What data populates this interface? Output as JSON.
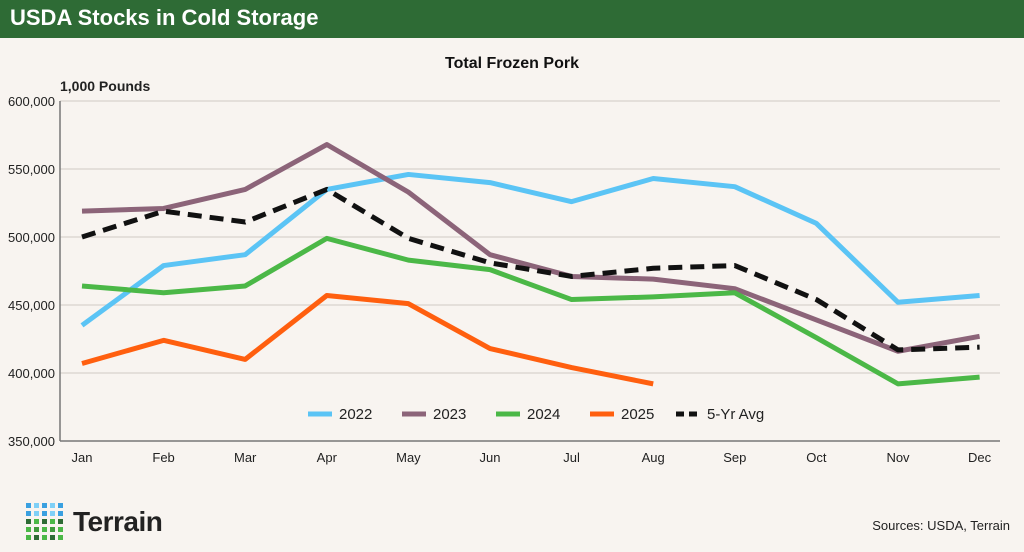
{
  "header": {
    "title": "USDA Stocks in Cold Storage"
  },
  "footer": {
    "logo": "Terrain",
    "sources": "Sources: USDA, Terrain"
  },
  "chart_data": {
    "type": "line",
    "title": "Total Frozen Pork",
    "ylabel": "1,000 Pounds",
    "ylim": [
      350000,
      600000
    ],
    "yticks": [
      600000,
      550000,
      500000,
      450000,
      400000,
      350000
    ],
    "ytick_labels": [
      "600,000",
      "550,000",
      "500,000",
      "450,000",
      "400,000",
      "350,000"
    ],
    "categories": [
      "Jan",
      "Feb",
      "Mar",
      "Apr",
      "May",
      "Jun",
      "Jul",
      "Aug",
      "Sep",
      "Oct",
      "Nov",
      "Dec"
    ],
    "grid": true,
    "legend": "bottom-inside",
    "series": [
      {
        "name": "2022",
        "color": "#5bc4f5",
        "dashed": false,
        "values": [
          435000,
          479000,
          487000,
          535000,
          546000,
          540000,
          526000,
          543000,
          537000,
          510000,
          452000,
          457000
        ]
      },
      {
        "name": "2023",
        "color": "#8c6479",
        "dashed": false,
        "values": [
          519000,
          521000,
          535000,
          568000,
          533000,
          487000,
          471000,
          469000,
          462000,
          439000,
          416000,
          427000
        ]
      },
      {
        "name": "2024",
        "color": "#4bb847",
        "dashed": false,
        "values": [
          464000,
          459000,
          464000,
          499000,
          483000,
          476000,
          454000,
          456000,
          459000,
          426000,
          392000,
          397000
        ]
      },
      {
        "name": "2025",
        "color": "#ff5f0f",
        "dashed": false,
        "values": [
          407000,
          424000,
          410000,
          457000,
          451000,
          418000,
          404000,
          392000,
          null,
          null,
          null,
          null
        ]
      },
      {
        "name": "5-Yr Avg",
        "color": "#111111",
        "dashed": true,
        "values": [
          500000,
          519000,
          511000,
          535000,
          499000,
          481000,
          471000,
          477000,
          479000,
          454000,
          417000,
          419000
        ]
      }
    ]
  }
}
